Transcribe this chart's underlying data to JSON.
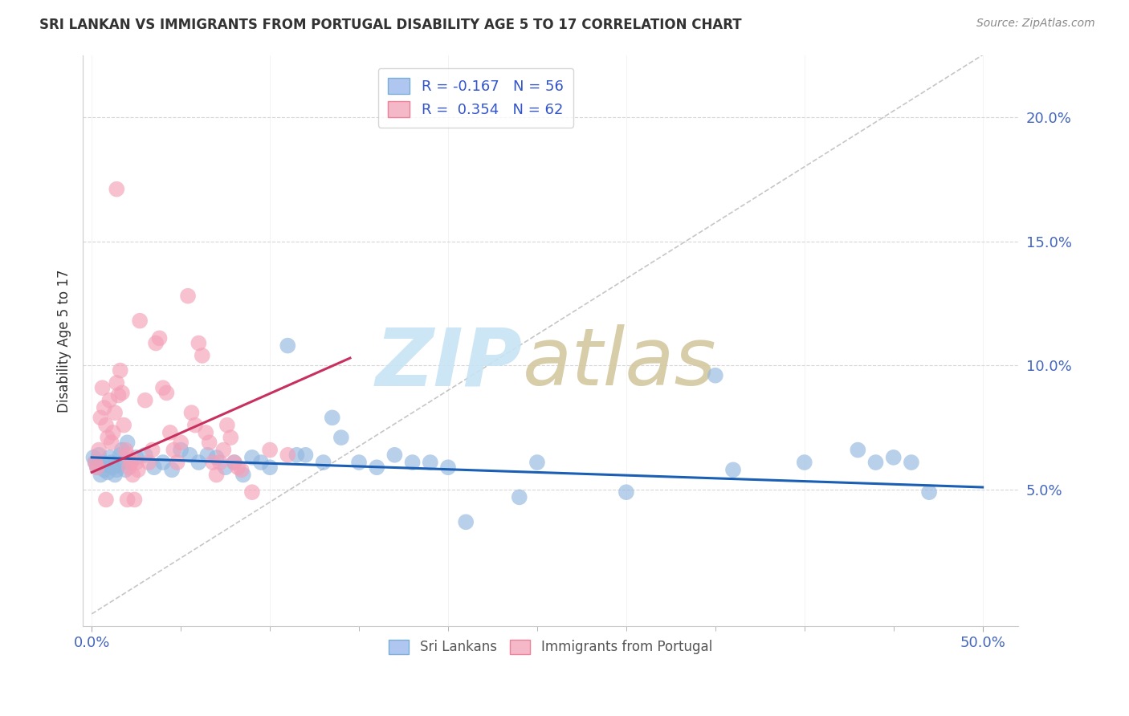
{
  "title": "SRI LANKAN VS IMMIGRANTS FROM PORTUGAL DISABILITY AGE 5 TO 17 CORRELATION CHART",
  "source": "Source: ZipAtlas.com",
  "xlabel_ticks_pos": [
    0.0,
    0.5
  ],
  "xlabel_ticks_labels": [
    "0.0%",
    "50.0%"
  ],
  "ylabel_ticks_pos": [
    0.05,
    0.1,
    0.15,
    0.2
  ],
  "ylabel_ticks_labels": [
    "5.0%",
    "10.0%",
    "15.0%",
    "20.0%"
  ],
  "ylabel_label": "Disability Age 5 to 17",
  "xlim": [
    -0.005,
    0.52
  ],
  "ylim": [
    -0.005,
    0.225
  ],
  "sri_lanka_color": "#93b8e0",
  "portugal_color": "#f4a0b8",
  "sri_lanka_line_color": "#1a5fb4",
  "portugal_line_color": "#c83060",
  "watermark_zip_color": "#c8e4f4",
  "watermark_atlas_color": "#d4c8a0",
  "legend_r_color": "#3355cc",
  "legend_n_color": "#3355cc",
  "sri_lanka_trend_x0": 0.0,
  "sri_lanka_trend_x1": 0.5,
  "sri_lanka_trend_y0": 0.063,
  "sri_lanka_trend_y1": 0.051,
  "portugal_trend_x0": 0.0,
  "portugal_trend_x1": 0.145,
  "portugal_trend_y0": 0.057,
  "portugal_trend_y1": 0.103,
  "sri_lanka_points": [
    [
      0.001,
      0.063
    ],
    [
      0.002,
      0.061
    ],
    [
      0.003,
      0.059
    ],
    [
      0.004,
      0.064
    ],
    [
      0.005,
      0.056
    ],
    [
      0.006,
      0.061
    ],
    [
      0.007,
      0.058
    ],
    [
      0.008,
      0.06
    ],
    [
      0.009,
      0.057
    ],
    [
      0.01,
      0.063
    ],
    [
      0.011,
      0.061
    ],
    [
      0.012,
      0.059
    ],
    [
      0.013,
      0.056
    ],
    [
      0.014,
      0.058
    ],
    [
      0.015,
      0.06
    ],
    [
      0.016,
      0.064
    ],
    [
      0.017,
      0.066
    ],
    [
      0.018,
      0.061
    ],
    [
      0.019,
      0.058
    ],
    [
      0.02,
      0.069
    ],
    [
      0.025,
      0.063
    ],
    [
      0.03,
      0.064
    ],
    [
      0.035,
      0.059
    ],
    [
      0.04,
      0.061
    ],
    [
      0.045,
      0.058
    ],
    [
      0.05,
      0.066
    ],
    [
      0.055,
      0.064
    ],
    [
      0.06,
      0.061
    ],
    [
      0.065,
      0.064
    ],
    [
      0.07,
      0.063
    ],
    [
      0.075,
      0.059
    ],
    [
      0.08,
      0.061
    ],
    [
      0.085,
      0.056
    ],
    [
      0.09,
      0.063
    ],
    [
      0.095,
      0.061
    ],
    [
      0.1,
      0.059
    ],
    [
      0.11,
      0.108
    ],
    [
      0.115,
      0.064
    ],
    [
      0.12,
      0.064
    ],
    [
      0.13,
      0.061
    ],
    [
      0.135,
      0.079
    ],
    [
      0.14,
      0.071
    ],
    [
      0.15,
      0.061
    ],
    [
      0.16,
      0.059
    ],
    [
      0.17,
      0.064
    ],
    [
      0.18,
      0.061
    ],
    [
      0.19,
      0.061
    ],
    [
      0.2,
      0.059
    ],
    [
      0.21,
      0.037
    ],
    [
      0.24,
      0.047
    ],
    [
      0.25,
      0.061
    ],
    [
      0.3,
      0.049
    ],
    [
      0.35,
      0.096
    ],
    [
      0.36,
      0.058
    ],
    [
      0.4,
      0.061
    ],
    [
      0.43,
      0.066
    ],
    [
      0.44,
      0.061
    ],
    [
      0.45,
      0.063
    ],
    [
      0.46,
      0.061
    ],
    [
      0.47,
      0.049
    ]
  ],
  "portugal_points": [
    [
      0.002,
      0.061
    ],
    [
      0.003,
      0.059
    ],
    [
      0.004,
      0.066
    ],
    [
      0.005,
      0.079
    ],
    [
      0.006,
      0.091
    ],
    [
      0.007,
      0.083
    ],
    [
      0.008,
      0.076
    ],
    [
      0.009,
      0.071
    ],
    [
      0.01,
      0.086
    ],
    [
      0.011,
      0.069
    ],
    [
      0.012,
      0.073
    ],
    [
      0.013,
      0.081
    ],
    [
      0.014,
      0.093
    ],
    [
      0.015,
      0.088
    ],
    [
      0.016,
      0.098
    ],
    [
      0.017,
      0.089
    ],
    [
      0.018,
      0.076
    ],
    [
      0.019,
      0.066
    ],
    [
      0.02,
      0.064
    ],
    [
      0.021,
      0.059
    ],
    [
      0.022,
      0.061
    ],
    [
      0.023,
      0.056
    ],
    [
      0.024,
      0.046
    ],
    [
      0.025,
      0.061
    ],
    [
      0.026,
      0.058
    ],
    [
      0.027,
      0.118
    ],
    [
      0.03,
      0.086
    ],
    [
      0.032,
      0.061
    ],
    [
      0.034,
      0.066
    ],
    [
      0.036,
      0.109
    ],
    [
      0.038,
      0.111
    ],
    [
      0.04,
      0.091
    ],
    [
      0.042,
      0.089
    ],
    [
      0.044,
      0.073
    ],
    [
      0.046,
      0.066
    ],
    [
      0.048,
      0.061
    ],
    [
      0.05,
      0.069
    ],
    [
      0.054,
      0.128
    ],
    [
      0.056,
      0.081
    ],
    [
      0.058,
      0.076
    ],
    [
      0.06,
      0.109
    ],
    [
      0.062,
      0.104
    ],
    [
      0.064,
      0.073
    ],
    [
      0.066,
      0.069
    ],
    [
      0.068,
      0.061
    ],
    [
      0.07,
      0.056
    ],
    [
      0.072,
      0.061
    ],
    [
      0.074,
      0.066
    ],
    [
      0.076,
      0.076
    ],
    [
      0.078,
      0.071
    ],
    [
      0.08,
      0.061
    ],
    [
      0.082,
      0.059
    ],
    [
      0.084,
      0.058
    ],
    [
      0.09,
      0.049
    ],
    [
      0.1,
      0.066
    ],
    [
      0.11,
      0.064
    ],
    [
      0.014,
      0.171
    ],
    [
      0.008,
      0.046
    ],
    [
      0.02,
      0.046
    ]
  ]
}
